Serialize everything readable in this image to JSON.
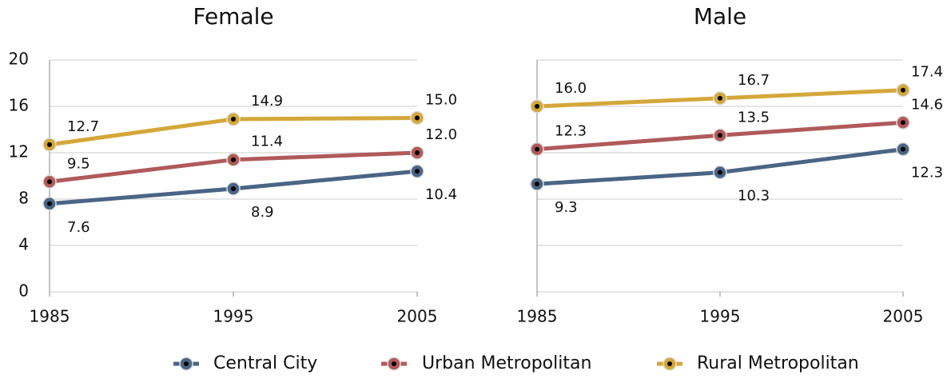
{
  "chart_data": [
    {
      "type": "line",
      "title": "Female",
      "x": [
        1985,
        1995,
        2005
      ],
      "xlim": [
        1985,
        2005
      ],
      "xticks": [
        1985,
        1995,
        2005
      ],
      "ylim": [
        0,
        20
      ],
      "yticks": [
        0,
        4,
        8,
        12,
        16,
        20
      ],
      "grid": true,
      "y_tick_labels": true,
      "series": [
        {
          "name": "Central City",
          "color": "#4a6584",
          "values": [
            7.6,
            8.9,
            10.4
          ],
          "value_labels": [
            "7.6",
            "8.9",
            "10.4"
          ]
        },
        {
          "name": "Urban Metropolitan",
          "color": "#b05a5a",
          "values": [
            9.5,
            11.4,
            12.0
          ],
          "value_labels": [
            "9.5",
            "11.4",
            "12.0"
          ]
        },
        {
          "name": "Rural Metropolitan",
          "color": "#d4a73a",
          "values": [
            12.7,
            14.9,
            15.0
          ],
          "value_labels": [
            "12.7",
            "14.9",
            "15.0"
          ]
        }
      ]
    },
    {
      "type": "line",
      "title": "Male",
      "x": [
        1985,
        1995,
        2005
      ],
      "xlim": [
        1985,
        2005
      ],
      "xticks": [
        1985,
        1995,
        2005
      ],
      "ylim": [
        0,
        20
      ],
      "yticks": [
        0,
        4,
        8,
        12,
        16,
        20
      ],
      "grid": true,
      "y_tick_labels": false,
      "series": [
        {
          "name": "Central City",
          "color": "#4a6584",
          "values": [
            9.3,
            10.3,
            12.3
          ],
          "value_labels": [
            "9.3",
            "10.3",
            "12.3"
          ]
        },
        {
          "name": "Urban Metropolitan",
          "color": "#b05a5a",
          "values": [
            12.3,
            13.5,
            14.6
          ],
          "value_labels": [
            "12.3",
            "13.5",
            "14.6"
          ]
        },
        {
          "name": "Rural Metropolitan",
          "color": "#d4a73a",
          "values": [
            16.0,
            16.7,
            17.4
          ],
          "value_labels": [
            "16.0",
            "16.7",
            "17.4"
          ]
        }
      ]
    }
  ]
}
